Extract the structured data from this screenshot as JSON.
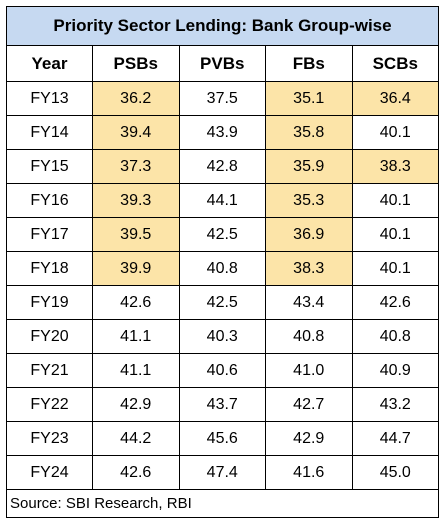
{
  "chart_data": {
    "type": "table",
    "title": "Priority Sector Lending: Bank Group-wise",
    "columns": [
      "Year",
      "PSBs",
      "PVBs",
      "FBs",
      "SCBs"
    ],
    "rows": [
      [
        "FY13",
        "36.2",
        "37.5",
        "35.1",
        "36.4"
      ],
      [
        "FY14",
        "39.4",
        "43.9",
        "35.8",
        "40.1"
      ],
      [
        "FY15",
        "37.3",
        "42.8",
        "35.9",
        "38.3"
      ],
      [
        "FY16",
        "39.3",
        "44.1",
        "35.3",
        "40.1"
      ],
      [
        "FY17",
        "39.5",
        "42.5",
        "36.9",
        "40.1"
      ],
      [
        "FY18",
        "39.9",
        "40.8",
        "38.3",
        "40.1"
      ],
      [
        "FY19",
        "42.6",
        "42.5",
        "43.4",
        "42.6"
      ],
      [
        "FY20",
        "41.1",
        "40.3",
        "40.8",
        "40.8"
      ],
      [
        "FY21",
        "41.1",
        "40.6",
        "41.0",
        "40.9"
      ],
      [
        "FY22",
        "42.9",
        "43.7",
        "42.7",
        "43.2"
      ],
      [
        "FY23",
        "44.2",
        "45.6",
        "42.9",
        "44.7"
      ],
      [
        "FY24",
        "42.6",
        "47.4",
        "41.6",
        "45.0"
      ]
    ],
    "highlighted": [
      [
        1,
        3,
        4
      ],
      [
        1,
        3
      ],
      [
        1,
        3,
        4
      ],
      [
        1,
        3
      ],
      [
        1,
        3
      ],
      [
        1,
        3
      ],
      [],
      [],
      [],
      [],
      [],
      []
    ],
    "highlight_color": "#fce4a8",
    "header_color": "#c6d9f1",
    "source": "Source: SBI Research, RBI"
  }
}
